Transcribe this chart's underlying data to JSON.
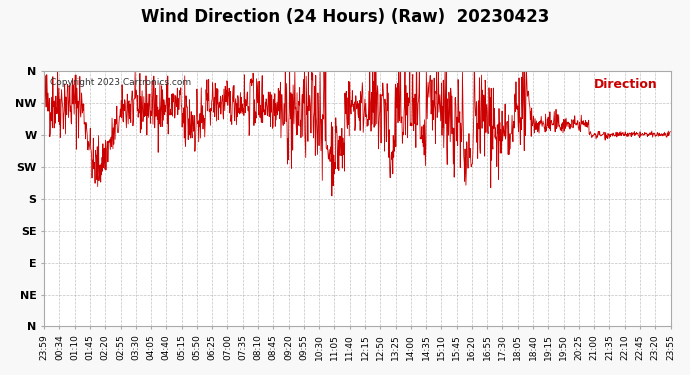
{
  "title": "Wind Direction (24 Hours) (Raw)  20230423",
  "copyright": "Copyright 2023 Cartronics.com",
  "legend_label": "Direction",
  "line_color": "#cc0000",
  "background_color": "#f8f8f8",
  "plot_bg_color": "#ffffff",
  "grid_color": "#aaaaaa",
  "ytick_labels": [
    "N",
    "NE",
    "E",
    "SE",
    "S",
    "SW",
    "W",
    "NW",
    "N"
  ],
  "ytick_values": [
    0,
    45,
    90,
    135,
    180,
    225,
    270,
    315,
    360
  ],
  "ylim": [
    0,
    360
  ],
  "xlabel_fontsize": 6.5,
  "title_fontsize": 12,
  "xtick_labels": [
    "23:59",
    "00:34",
    "01:10",
    "01:45",
    "02:20",
    "02:55",
    "03:30",
    "04:05",
    "04:40",
    "05:15",
    "05:50",
    "06:25",
    "07:00",
    "07:35",
    "08:10",
    "08:45",
    "09:20",
    "09:55",
    "10:30",
    "11:05",
    "11:40",
    "12:15",
    "12:50",
    "13:25",
    "14:00",
    "14:35",
    "15:10",
    "15:45",
    "16:20",
    "16:55",
    "17:30",
    "18:05",
    "18:40",
    "19:15",
    "19:50",
    "20:25",
    "21:00",
    "21:35",
    "22:10",
    "22:45",
    "23:20",
    "23:55"
  ],
  "num_points": 1440
}
